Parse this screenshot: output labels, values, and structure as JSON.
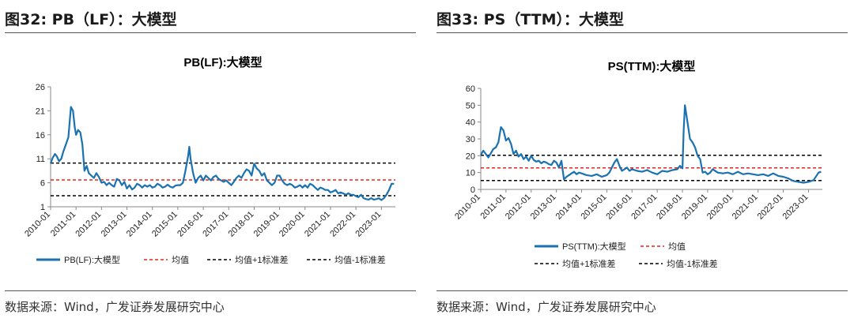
{
  "figures": [
    {
      "figure_title": "图32:  PB（LF）：大模型",
      "source": "数据来源：Wind，广发证券发展研究中心",
      "colors": {
        "series": "#1a72b0",
        "mean": "#e8231c",
        "band": "#000000"
      }
    },
    {
      "figure_title": "图33:  PS（TTM）：大模型",
      "source": "数据来源：Wind，广发证券发展研究中心",
      "colors": {
        "series": "#1a72b0",
        "mean": "#e8231c",
        "band": "#000000"
      }
    }
  ],
  "chart_data": [
    {
      "type": "line",
      "title": "PB(LF):大模型",
      "x_tick_labels": [
        "2010-01",
        "2011-01",
        "2012-01",
        "2013-01",
        "2014-01",
        "2015-01",
        "2016-01",
        "2017-01",
        "2018-01",
        "2019-01",
        "2020-01",
        "2021-01",
        "2022-01",
        "2023-01"
      ],
      "y_ticks": [
        1,
        6,
        11,
        16,
        21,
        26
      ],
      "ylim": [
        1,
        26
      ],
      "xlim": [
        2010.0,
        2023.55
      ],
      "legend": {
        "series": "PB(LF):大模型",
        "mean": "均值",
        "upper": "均值+1标准差",
        "lower": "均值-1标准差"
      },
      "reference_lines": {
        "mean": 6.6,
        "upper": 10.1,
        "lower": 3.3
      },
      "series": [
        {
          "name": "PB(LF):大模型",
          "x": [
            2010.0,
            2010.08,
            2010.17,
            2010.25,
            2010.33,
            2010.42,
            2010.5,
            2010.6,
            2010.7,
            2010.8,
            2010.88,
            2010.95,
            2011.0,
            2011.08,
            2011.17,
            2011.25,
            2011.33,
            2011.42,
            2011.5,
            2011.6,
            2011.7,
            2011.8,
            2011.9,
            2012.0,
            2012.1,
            2012.2,
            2012.3,
            2012.4,
            2012.5,
            2012.6,
            2012.7,
            2012.8,
            2012.9,
            2013.0,
            2013.1,
            2013.2,
            2013.3,
            2013.4,
            2013.5,
            2013.6,
            2013.7,
            2013.8,
            2013.9,
            2014.0,
            2014.1,
            2014.2,
            2014.3,
            2014.4,
            2014.5,
            2014.6,
            2014.7,
            2014.8,
            2014.9,
            2015.0,
            2015.1,
            2015.2,
            2015.3,
            2015.4,
            2015.45,
            2015.5,
            2015.6,
            2015.7,
            2015.8,
            2015.9,
            2016.0,
            2016.1,
            2016.2,
            2016.3,
            2016.4,
            2016.5,
            2016.6,
            2016.7,
            2016.8,
            2016.9,
            2017.0,
            2017.1,
            2017.2,
            2017.3,
            2017.4,
            2017.5,
            2017.6,
            2017.7,
            2017.8,
            2017.9,
            2018.0,
            2018.1,
            2018.2,
            2018.3,
            2018.4,
            2018.5,
            2018.6,
            2018.7,
            2018.8,
            2018.9,
            2019.0,
            2019.1,
            2019.2,
            2019.3,
            2019.4,
            2019.5,
            2019.6,
            2019.7,
            2019.8,
            2019.9,
            2020.0,
            2020.1,
            2020.2,
            2020.3,
            2020.4,
            2020.5,
            2020.6,
            2020.7,
            2020.8,
            2020.9,
            2021.0,
            2021.1,
            2021.2,
            2021.3,
            2021.4,
            2021.5,
            2021.6,
            2021.7,
            2021.8,
            2021.9,
            2022.0,
            2022.1,
            2022.2,
            2022.3,
            2022.4,
            2022.5,
            2022.6,
            2022.7,
            2022.8,
            2022.9,
            2023.0,
            2023.1,
            2023.2,
            2023.3,
            2023.4,
            2023.5
          ],
          "y": [
            10.0,
            11.2,
            12.0,
            11.5,
            10.5,
            11.0,
            12.5,
            14.0,
            15.5,
            21.8,
            21.0,
            17.5,
            16.0,
            17.0,
            16.5,
            14.0,
            8.5,
            9.5,
            8.0,
            7.5,
            7.0,
            8.0,
            7.2,
            6.0,
            6.2,
            5.5,
            6.0,
            5.5,
            5.2,
            6.8,
            6.5,
            5.5,
            6.2,
            4.8,
            5.5,
            4.6,
            5.0,
            5.8,
            5.5,
            5.0,
            5.5,
            5.2,
            5.5,
            5.0,
            5.2,
            5.8,
            5.5,
            5.0,
            5.2,
            5.6,
            5.2,
            5.0,
            5.4,
            5.5,
            5.5,
            6.0,
            8.5,
            11.5,
            13.5,
            11.0,
            8.0,
            6.0,
            7.0,
            7.5,
            6.5,
            7.5,
            7.0,
            6.5,
            7.2,
            7.5,
            6.8,
            6.5,
            6.2,
            6.5,
            6.0,
            5.5,
            6.2,
            7.0,
            7.5,
            7.0,
            8.0,
            8.8,
            8.5,
            7.5,
            10.0,
            9.0,
            8.5,
            7.5,
            8.0,
            6.5,
            6.0,
            5.5,
            6.0,
            7.5,
            7.5,
            6.5,
            5.8,
            5.5,
            5.8,
            5.5,
            5.0,
            5.2,
            5.5,
            5.0,
            5.5,
            5.0,
            5.8,
            5.5,
            5.0,
            4.5,
            5.0,
            4.8,
            4.5,
            4.5,
            4.0,
            4.2,
            4.5,
            3.8,
            4.0,
            3.8,
            3.5,
            3.8,
            3.5,
            3.5,
            3.2,
            3.0,
            3.5,
            2.8,
            2.6,
            2.5,
            2.8,
            2.5,
            2.6,
            2.8,
            2.4,
            2.8,
            3.5,
            4.5,
            5.8,
            5.8
          ]
        }
      ]
    },
    {
      "type": "line",
      "title": "PS(TTM):大模型",
      "x_tick_labels": [
        "2010-01",
        "2011-01",
        "2012-01",
        "2013-01",
        "2014-01",
        "2015-01",
        "2016-01",
        "2017-01",
        "2018-01",
        "2019-01",
        "2020-01",
        "2021-01",
        "2022-01",
        "2023-01"
      ],
      "y_ticks": [
        0,
        10,
        20,
        30,
        40,
        50,
        60
      ],
      "ylim": [
        0,
        60
      ],
      "xlim": [
        2010.0,
        2023.55
      ],
      "legend": {
        "series": "PS(TTM):大模型",
        "mean": "均值",
        "upper": "均值+1标准差",
        "lower": "均值-1标准差"
      },
      "reference_lines": {
        "mean": 12.8,
        "upper": 20.3,
        "lower": 5.3
      },
      "series": [
        {
          "name": "PS(TTM):大模型",
          "x": [
            2010.0,
            2010.1,
            2010.2,
            2010.3,
            2010.4,
            2010.5,
            2010.6,
            2010.7,
            2010.8,
            2010.9,
            2011.0,
            2011.1,
            2011.2,
            2011.3,
            2011.4,
            2011.5,
            2011.6,
            2011.7,
            2011.8,
            2011.9,
            2012.0,
            2012.1,
            2012.2,
            2012.3,
            2012.4,
            2012.5,
            2012.6,
            2012.7,
            2012.8,
            2012.9,
            2013.0,
            2013.1,
            2013.2,
            2013.3,
            2013.4,
            2013.5,
            2013.6,
            2013.7,
            2013.8,
            2013.9,
            2014.0,
            2014.2,
            2014.4,
            2014.6,
            2014.8,
            2015.0,
            2015.1,
            2015.2,
            2015.3,
            2015.4,
            2015.5,
            2015.6,
            2015.7,
            2015.8,
            2015.9,
            2016.0,
            2016.2,
            2016.4,
            2016.6,
            2016.8,
            2017.0,
            2017.2,
            2017.4,
            2017.6,
            2017.8,
            2017.9,
            2018.0,
            2018.05,
            2018.1,
            2018.2,
            2018.3,
            2018.4,
            2018.5,
            2018.6,
            2018.7,
            2018.8,
            2018.9,
            2019.0,
            2019.1,
            2019.2,
            2019.4,
            2019.6,
            2019.8,
            2020.0,
            2020.2,
            2020.4,
            2020.6,
            2020.8,
            2021.0,
            2021.2,
            2021.4,
            2021.6,
            2021.8,
            2022.0,
            2022.2,
            2022.4,
            2022.6,
            2022.8,
            2023.0,
            2023.2,
            2023.4,
            2023.5
          ],
          "y": [
            20.5,
            23.0,
            21.0,
            19.0,
            21.5,
            24.0,
            25.0,
            28.0,
            37.0,
            35.0,
            29.0,
            30.5,
            27.0,
            21.0,
            23.0,
            19.5,
            21.0,
            18.0,
            19.5,
            17.0,
            20.0,
            17.5,
            16.5,
            17.0,
            15.5,
            16.5,
            16.0,
            15.0,
            14.5,
            17.0,
            16.0,
            13.0,
            17.0,
            6.0,
            7.5,
            8.5,
            9.5,
            10.5,
            9.0,
            10.0,
            9.5,
            8.5,
            8.0,
            9.0,
            7.5,
            8.5,
            10.0,
            13.0,
            16.0,
            18.0,
            14.0,
            11.0,
            12.0,
            13.0,
            11.0,
            12.0,
            11.0,
            10.5,
            11.5,
            10.0,
            9.0,
            11.0,
            10.5,
            11.5,
            12.0,
            14.0,
            12.5,
            35.0,
            50.0,
            40.0,
            30.0,
            28.0,
            25.0,
            20.0,
            18.0,
            10.0,
            10.5,
            9.0,
            10.0,
            12.0,
            10.0,
            9.5,
            10.0,
            9.0,
            10.5,
            9.0,
            9.5,
            9.0,
            8.5,
            9.0,
            8.0,
            9.5,
            8.0,
            7.5,
            6.5,
            5.0,
            4.5,
            4.0,
            4.5,
            5.5,
            10.0,
            10.5
          ]
        }
      ]
    }
  ]
}
